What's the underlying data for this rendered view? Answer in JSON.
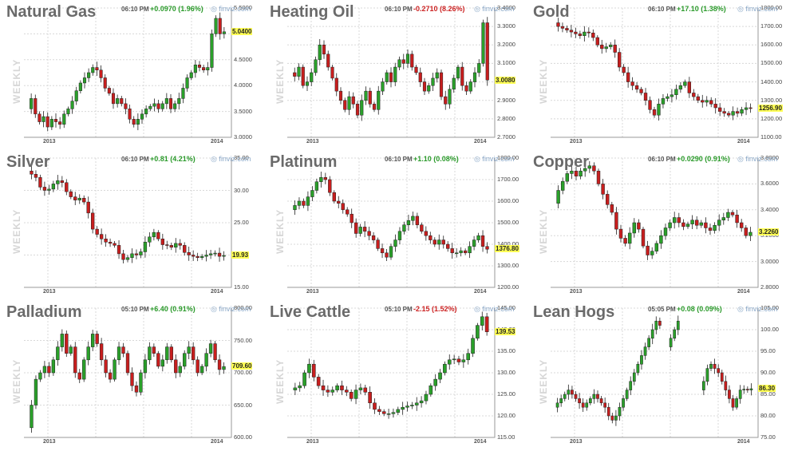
{
  "panels": [
    {
      "title": "Natural Gas",
      "time": "06:10 PM",
      "change": "+0.0970 (1.96%)",
      "dir": "up",
      "brand": "finviz.com",
      "weekly": "WEEKLY",
      "xlabels": [
        "2013",
        "2014"
      ],
      "ylabels": [
        "5.5000",
        "5.0000",
        "4.5000",
        "4.0000",
        "3.5000",
        "3.0000"
      ],
      "ymin": 3.0,
      "ymax": 5.5,
      "last": "5.0400",
      "series": [
        3.55,
        3.75,
        3.45,
        3.3,
        3.4,
        3.2,
        3.35,
        3.3,
        3.25,
        3.45,
        3.55,
        3.7,
        3.9,
        4.05,
        4.15,
        4.25,
        4.35,
        4.3,
        4.15,
        3.95,
        3.85,
        3.65,
        3.75,
        3.65,
        3.55,
        3.35,
        3.25,
        3.35,
        3.45,
        3.55,
        3.6,
        3.65,
        3.55,
        3.65,
        3.75,
        3.55,
        3.65,
        3.75,
        3.95,
        4.15,
        4.25,
        4.4,
        4.35,
        4.3,
        4.35,
        5.0,
        5.3,
        5.0,
        5.04
      ]
    },
    {
      "title": "Heating Oil",
      "time": "06:10 PM",
      "change": "-0.2710 (8.26%)",
      "dir": "down",
      "brand": "finviz.com",
      "weekly": "WEEKLY",
      "xlabels": [
        "2013",
        "2014"
      ],
      "ylabels": [
        "3.4000",
        "3.3000",
        "3.2000",
        "3.1000",
        "3.0000",
        "2.9000",
        "2.8000",
        "2.7000"
      ],
      "ymin": 2.7,
      "ymax": 3.4,
      "last": "3.0080",
      "series": [
        3.05,
        3.03,
        3.08,
        2.98,
        3.0,
        3.05,
        3.12,
        3.2,
        3.15,
        3.08,
        3.02,
        2.95,
        2.9,
        2.85,
        2.92,
        2.88,
        2.82,
        2.9,
        2.95,
        2.88,
        2.85,
        2.95,
        3.0,
        3.05,
        3.0,
        3.08,
        3.12,
        3.1,
        3.15,
        3.08,
        3.05,
        3.0,
        2.95,
        2.98,
        3.02,
        3.05,
        2.92,
        2.88,
        2.96,
        3.02,
        3.08,
        2.98,
        2.95,
        3.0,
        3.05,
        3.1,
        3.32,
        3.01
      ]
    },
    {
      "title": "Gold",
      "time": "06:10 PM",
      "change": "+17.10 (1.38%)",
      "dir": "up",
      "brand": "finviz.com",
      "weekly": "WEEKLY",
      "xlabels": [
        "2013",
        "2014"
      ],
      "ylabels": [
        "1800.00",
        "1700.00",
        "1600.00",
        "1500.00",
        "1400.00",
        "1300.00",
        "1200.00",
        "1100.00"
      ],
      "ymin": 1100,
      "ymax": 1800,
      "last": "1256.90",
      "series": [
        1720,
        1700,
        1690,
        1680,
        1670,
        1660,
        1650,
        1670,
        1665,
        1640,
        1600,
        1580,
        1590,
        1600,
        1560,
        1480,
        1450,
        1400,
        1380,
        1360,
        1340,
        1300,
        1250,
        1220,
        1280,
        1310,
        1320,
        1330,
        1360,
        1380,
        1400,
        1340,
        1320,
        1300,
        1290,
        1300,
        1280,
        1260,
        1240,
        1230,
        1220,
        1240,
        1230,
        1250,
        1260,
        1256
      ]
    },
    {
      "title": "Silver",
      "time": "06:10 PM",
      "change": "+0.81 (4.21%)",
      "dir": "up",
      "brand": "finviz.com",
      "weekly": "WEEKLY",
      "xlabels": [
        "2013",
        "2014"
      ],
      "ylabels": [
        "35.00",
        "30.00",
        "25.00",
        "20.00",
        "15.00"
      ],
      "ymin": 15,
      "ymax": 35,
      "last": "19.93",
      "series": [
        33,
        32.5,
        32,
        30.5,
        30,
        30.2,
        31,
        31.5,
        31.2,
        29.8,
        29,
        28.5,
        28.8,
        28.2,
        26.5,
        24,
        23.2,
        22.5,
        22,
        21.8,
        21.5,
        20.2,
        19.3,
        19.6,
        20.2,
        20,
        20.5,
        22,
        22.8,
        23.5,
        22.5,
        21.6,
        21.5,
        21.2,
        21.8,
        21.5,
        20.4,
        20,
        19.8,
        19.6,
        19.8,
        20,
        20.2,
        20.3,
        19.8,
        19.93
      ]
    },
    {
      "title": "Platinum",
      "time": "06:10 PM",
      "change": "+1.10 (0.08%)",
      "dir": "up",
      "brand": "finviz.com",
      "weekly": "WEEKLY",
      "xlabels": [
        "2013",
        "2014"
      ],
      "ylabels": [
        "1800.00",
        "1700.00",
        "1600.00",
        "1500.00",
        "1400.00",
        "1300.00",
        "1200.00"
      ],
      "ymin": 1200,
      "ymax": 1800,
      "last": "1376.80",
      "series": [
        1560,
        1580,
        1600,
        1580,
        1620,
        1650,
        1690,
        1710,
        1700,
        1640,
        1600,
        1590,
        1560,
        1540,
        1500,
        1450,
        1480,
        1460,
        1440,
        1420,
        1380,
        1360,
        1340,
        1390,
        1420,
        1460,
        1490,
        1510,
        1530,
        1490,
        1460,
        1440,
        1420,
        1400,
        1420,
        1400,
        1380,
        1360,
        1360,
        1370,
        1360,
        1390,
        1420,
        1440,
        1390,
        1377
      ]
    },
    {
      "title": "Copper",
      "time": "06:10 PM",
      "change": "+0.0290 (0.91%)",
      "dir": "up",
      "brand": "finviz.com",
      "weekly": "WEEKLY",
      "xlabels": [
        "2013",
        "2014"
      ],
      "ylabels": [
        "3.8000",
        "3.6000",
        "3.4000",
        "3.2000",
        "3.0000",
        "2.8000"
      ],
      "ymin": 2.8,
      "ymax": 3.8,
      "last": "3.2260",
      "series": [
        3.45,
        3.55,
        3.62,
        3.68,
        3.7,
        3.66,
        3.7,
        3.72,
        3.74,
        3.7,
        3.6,
        3.52,
        3.44,
        3.38,
        3.25,
        3.18,
        3.14,
        3.22,
        3.3,
        3.25,
        3.12,
        3.05,
        3.08,
        3.14,
        3.2,
        3.26,
        3.3,
        3.34,
        3.3,
        3.27,
        3.29,
        3.32,
        3.28,
        3.3,
        3.26,
        3.24,
        3.28,
        3.32,
        3.34,
        3.38,
        3.36,
        3.3,
        3.26,
        3.2,
        3.226
      ]
    },
    {
      "title": "Palladium",
      "time": "05:10 PM",
      "change": "+6.40 (0.91%)",
      "dir": "up",
      "brand": "finviz.com",
      "weekly": "WEEKLY",
      "xlabels": [
        "2013",
        "2014"
      ],
      "ylabels": [
        "800.00",
        "750.00",
        "700.00",
        "650.00",
        "600.00"
      ],
      "ymin": 600,
      "ymax": 800,
      "last": "709.60",
      "series": [
        615,
        650,
        690,
        700,
        710,
        700,
        720,
        740,
        760,
        730,
        740,
        700,
        690,
        720,
        740,
        760,
        745,
        720,
        700,
        690,
        720,
        740,
        730,
        700,
        680,
        670,
        700,
        720,
        740,
        730,
        710,
        720,
        740,
        720,
        700,
        710,
        730,
        740,
        720,
        700,
        710,
        730,
        745,
        720,
        705,
        709.6
      ]
    },
    {
      "title": "Live Cattle",
      "time": "05:10 PM",
      "change": "-2.15 (1.52%)",
      "dir": "down",
      "brand": "finviz.com",
      "weekly": "WEEKLY",
      "xlabels": [
        "2013",
        "2014"
      ],
      "ylabels": [
        "145.00",
        "140.00",
        "135.00",
        "130.00",
        "125.00",
        "120.00",
        "115.00"
      ],
      "ymin": 115,
      "ymax": 145,
      "last": "139.53",
      "series": [
        126,
        126.5,
        127,
        130,
        132,
        129,
        127,
        126,
        125.5,
        126,
        127,
        126,
        125.5,
        124,
        126,
        126.5,
        125.5,
        123,
        121.5,
        121,
        120.5,
        120.5,
        120.8,
        121.5,
        122,
        122.3,
        122.5,
        123,
        123.5,
        125,
        127,
        128.5,
        130,
        132,
        133,
        133.2,
        132.5,
        133,
        134.5,
        138,
        141,
        143,
        139.5
      ]
    },
    {
      "title": "Lean Hogs",
      "time": "05:05 PM",
      "change": "+0.08 (0.09%)",
      "dir": "up",
      "brand": "finviz.com",
      "weekly": "WEEKLY",
      "xlabels": [
        "2013",
        "2014"
      ],
      "ylabels": [
        "105.00",
        "100.00",
        "95.00",
        "90.00",
        "85.00",
        "80.00",
        "75.00"
      ],
      "ymin": 75,
      "ymax": 105,
      "last": "86.30",
      "series": [
        82,
        83,
        84,
        85,
        86,
        85,
        84,
        83,
        82,
        83,
        84,
        85,
        84,
        83,
        82,
        80,
        79,
        80,
        82,
        84,
        86,
        88,
        90,
        92,
        94,
        96,
        98,
        100,
        102,
        101,
        null,
        96,
        98,
        100,
        102,
        null,
        null,
        null,
        null,
        null,
        86,
        88,
        91,
        92,
        91,
        90,
        88,
        86,
        84,
        82,
        84,
        86,
        86.2,
        86,
        86.3
      ]
    }
  ]
}
